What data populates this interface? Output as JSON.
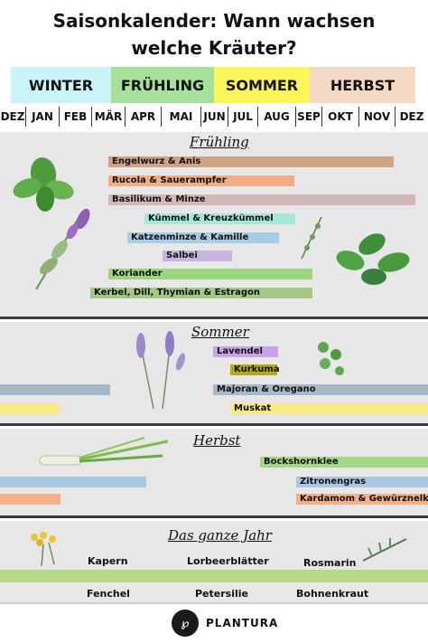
{
  "title": {
    "line1": "Saisonkalender: Wann wachsen",
    "line2": "welche Kräuter?"
  },
  "seasons": [
    {
      "label": "WINTER",
      "color": "#c9f3f7"
    },
    {
      "label": "FRÜHLING",
      "color": "#a6e09a"
    },
    {
      "label": "SOMMER",
      "color": "#fdf65a"
    },
    {
      "label": "HERBST",
      "color": "#f3d8c3"
    }
  ],
  "months": [
    "DEZ",
    "JAN",
    "FEB",
    "MÄR",
    "APR",
    "MAI",
    "JUN",
    "JUL",
    "AUG",
    "SEP",
    "OKT",
    "NOV",
    "DEZ"
  ],
  "sections": {
    "fruehling": "Frühling",
    "sommer": "Sommer",
    "herbst": "Herbst",
    "jahr": "Das ganze Jahr"
  },
  "bars": {
    "engelwurz": {
      "label": "Engelwurz & Anis",
      "color": "#d0a383"
    },
    "rucola": {
      "label": "Rucola & Sauerampfer",
      "color": "#f2ad86"
    },
    "basilikum": {
      "label": "Basilikum & Minze",
      "color": "#d3b6b6"
    },
    "kuemmel": {
      "label": "Kümmel & Kreuzkümmel",
      "color": "#a6e8d8"
    },
    "katzenminze": {
      "label": "Katzenminze & Kamille",
      "color": "#a7cde6"
    },
    "salbei": {
      "label": "Salbei",
      "color": "#c7b5dd"
    },
    "koriander": {
      "label": "Koriander",
      "color": "#9bd67e"
    },
    "kerbel": {
      "label": "Kerbel, Dill, Thymian & Estragon",
      "color": "#a2c884"
    },
    "lavendel": {
      "label": "Lavendel",
      "color": "#c9a3ea"
    },
    "kurkuma": {
      "label": "Kurkuma",
      "color": "#b7a81a"
    },
    "majoran": {
      "label": "Majoran & Oregano",
      "color": "#a3b8c8"
    },
    "muskat": {
      "label": "Muskat",
      "color": "#fbe886"
    },
    "bockshorn": {
      "label": "Bockshornklee",
      "color": "#a4d887"
    },
    "zitronengras": {
      "label": "Zitronengras",
      "color": "#aac7e2"
    },
    "kardamom": {
      "label": "Kardamom & Gewürznelken",
      "color": "#f4b089"
    },
    "jahr": {
      "color": "#b8d98a"
    }
  },
  "yearround": {
    "kapern": "Kapern",
    "lorbeer": "Lorbeerblätter",
    "rosmarin": "Rosmarin",
    "fenchel": "Fenchel",
    "petersilie": "Petersilie",
    "bohnenkraut": "Bohnenkraut"
  },
  "brand": "PLANTURA"
}
